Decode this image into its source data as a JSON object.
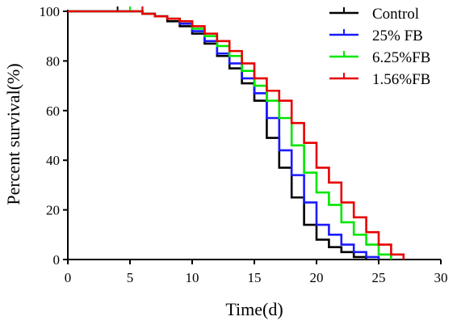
{
  "chart_data": {
    "type": "line",
    "step": true,
    "xlabel": "Time(d)",
    "ylabel": "Percent survival(%)",
    "xlim": [
      0,
      30
    ],
    "ylim": [
      0,
      100
    ],
    "xticks": [
      0,
      5,
      10,
      15,
      20,
      25,
      30
    ],
    "yticks": [
      0,
      20,
      40,
      60,
      80,
      100
    ],
    "grid": false,
    "legend_position": "top-right",
    "series": [
      {
        "name": "Control",
        "color": "#000000",
        "x": [
          0,
          6,
          7,
          8,
          9,
          10,
          11,
          12,
          13,
          14,
          15,
          16,
          17,
          18,
          19,
          20,
          21,
          22,
          23,
          24
        ],
        "y": [
          100,
          99,
          98,
          96,
          94,
          91,
          87,
          82,
          77,
          71,
          64,
          49,
          37,
          25,
          14,
          8,
          5,
          3,
          1,
          0
        ],
        "censored": [
          [
            4,
            100
          ],
          [
            5,
            100
          ],
          [
            6,
            100
          ],
          [
            23,
            1
          ]
        ]
      },
      {
        "name": "25% FB",
        "color": "#1a1aff",
        "x": [
          0,
          6,
          7,
          8,
          9,
          10,
          11,
          12,
          13,
          14,
          15,
          16,
          17,
          18,
          19,
          20,
          21,
          22,
          23,
          24,
          25
        ],
        "y": [
          100,
          99,
          98,
          97,
          95,
          92,
          88,
          83,
          79,
          73,
          67,
          57,
          44,
          34,
          23,
          14,
          10,
          6,
          3,
          1,
          0
        ],
        "censored": [
          [
            5,
            100
          ],
          [
            24,
            1
          ]
        ]
      },
      {
        "name": "6.25%FB",
        "color": "#00e600",
        "x": [
          0,
          6,
          7,
          8,
          9,
          10,
          11,
          12,
          13,
          14,
          15,
          16,
          17,
          18,
          19,
          20,
          21,
          22,
          23,
          24,
          25,
          26
        ],
        "y": [
          100,
          99,
          98,
          97,
          96,
          93,
          90,
          86,
          82,
          76,
          70,
          64,
          57,
          46,
          35,
          27,
          22,
          15,
          10,
          6,
          2,
          0
        ],
        "censored": [
          [
            5,
            100
          ],
          [
            25,
            2
          ]
        ]
      },
      {
        "name": "1.56%FB",
        "color": "#e60000",
        "x": [
          0,
          6,
          7,
          8,
          9,
          10,
          11,
          12,
          13,
          14,
          15,
          16,
          17,
          18,
          19,
          20,
          21,
          22,
          23,
          24,
          25,
          26,
          27
        ],
        "y": [
          100,
          99,
          98,
          97,
          96,
          94,
          91,
          88,
          84,
          79,
          73,
          68,
          64,
          55,
          47,
          37,
          31,
          23,
          17,
          11,
          6,
          2,
          0
        ],
        "censored": [
          [
            6,
            100
          ],
          [
            26,
            2
          ]
        ]
      }
    ]
  }
}
